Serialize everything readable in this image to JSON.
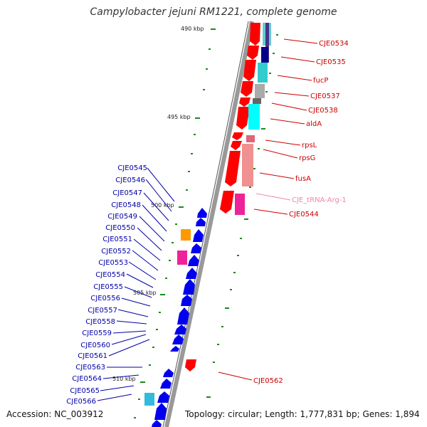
{
  "header": {
    "title": "Campylobacter jejuni RM1221, complete genome"
  },
  "footer": {
    "accession": "Accession: NC_003912",
    "topology": "Topology: circular; Length: 1,777,831 bp; Genes: 1,894"
  },
  "colors": {
    "backbone": "#888888",
    "forward_gene": "#ff0000",
    "reverse_gene": "#0000ff",
    "label_right": "#cc0000",
    "label_left": "#0000aa",
    "trna_label": "#ee88aa",
    "tick": "#1a8a1a"
  },
  "scale_marks": [
    {
      "label": "490 kbp"
    },
    {
      "label": "495 kbp"
    },
    {
      "label": "500 kbp"
    },
    {
      "label": "505 kbp"
    },
    {
      "label": "510 kbp"
    }
  ],
  "right_labels": [
    {
      "label": "CJE0534"
    },
    {
      "label": "CJE0535"
    },
    {
      "label": "fucP"
    },
    {
      "label": "CJE0537"
    },
    {
      "label": "CJE0538"
    },
    {
      "label": "aldA"
    },
    {
      "label": "rpsL"
    },
    {
      "label": "rpsG"
    },
    {
      "label": "fusA"
    },
    {
      "label": "CJE_tRNA-Arg-1"
    },
    {
      "label": "CJE0544"
    },
    {
      "label": "CJE0562"
    }
  ],
  "left_labels": [
    {
      "label": "CJE0545"
    },
    {
      "label": "CJE0546"
    },
    {
      "label": "CJE0547"
    },
    {
      "label": "CJE0548"
    },
    {
      "label": "CJE0549"
    },
    {
      "label": "CJE0550"
    },
    {
      "label": "CJE0551"
    },
    {
      "label": "CJE0552"
    },
    {
      "label": "CJE0553"
    },
    {
      "label": "CJE0554"
    },
    {
      "label": "CJE0555"
    },
    {
      "label": "CJE0556"
    },
    {
      "label": "CJE0557"
    },
    {
      "label": "CJE0558"
    },
    {
      "label": "CJE0559"
    },
    {
      "label": "CJE0560"
    },
    {
      "label": "CJE0561"
    },
    {
      "label": "CJE0563"
    },
    {
      "label": "CJE0564"
    },
    {
      "label": "CJE0565"
    },
    {
      "label": "CJE0566"
    }
  ]
}
